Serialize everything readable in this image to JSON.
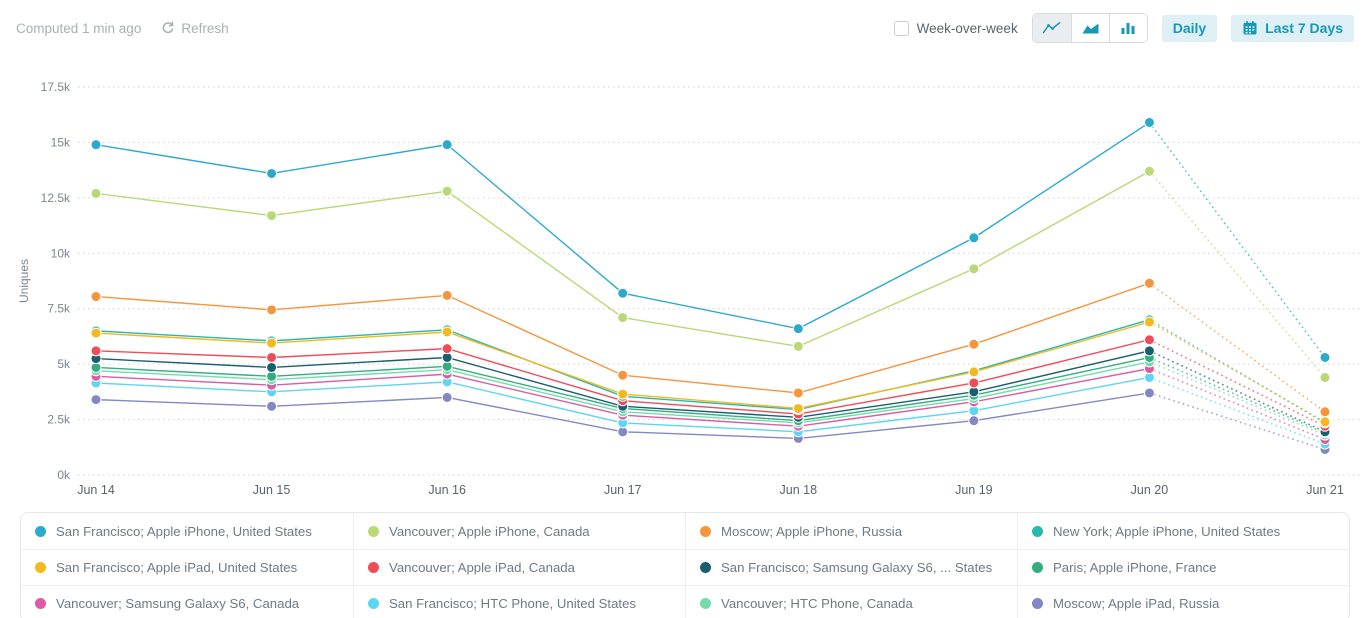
{
  "header": {
    "computed_label": "Computed 1 min ago",
    "refresh_label": "Refresh",
    "week_over_week_label": "Week-over-week",
    "week_over_week_checked": false,
    "daily_label": "Daily",
    "range_label": "Last 7 Days",
    "chart_type_selected": "line"
  },
  "icons": {
    "refresh": "circular-arrow",
    "line_chart": "zigzag-line",
    "area_chart": "filled-mountain",
    "bar_chart": "three-bars",
    "calendar": "calendar-grid"
  },
  "colors": {
    "accent_teal": "#1699b6",
    "pill_bg": "#deeff5",
    "grid_line": "#cdd2d7",
    "axis_text": "#7b858f",
    "x_label_text": "#59636d"
  },
  "chart_data": {
    "type": "line",
    "title": "",
    "xlabel": "",
    "ylabel": "Uniques",
    "x_labels": [
      "Jun 14",
      "Jun 15",
      "Jun 16",
      "Jun 17",
      "Jun 18",
      "Jun 19",
      "Jun 20",
      "Jun 21"
    ],
    "y_ticks": [
      "17.5k",
      "15k",
      "12.5k",
      "10k",
      "7.5k",
      "5k",
      "2.5k",
      "0k"
    ],
    "ylim": [
      0,
      17500
    ],
    "grid": "horizontal-dotted",
    "legend_position": "bottom",
    "note": "segment between Jun 20 and Jun 21 is drawn dotted (incomplete period)",
    "series": [
      {
        "name": "San Francisco; Apple iPhone, United States",
        "color": "#2caacd",
        "values": [
          14900,
          13600,
          14900,
          8200,
          6600,
          10700,
          15900,
          5300
        ]
      },
      {
        "name": "Vancouver; Apple iPhone, Canada",
        "color": "#b9d976",
        "values": [
          12700,
          11700,
          12800,
          7100,
          5800,
          9300,
          13700,
          4400
        ]
      },
      {
        "name": "Moscow; Apple iPhone, Russia",
        "color": "#f6953c",
        "values": [
          8050,
          7450,
          8100,
          4500,
          3700,
          5900,
          8650,
          2850
        ]
      },
      {
        "name": "New York; Apple iPhone, United States",
        "color": "#28b8ac",
        "values": [
          6500,
          6050,
          6550,
          3550,
          2950,
          4700,
          7000,
          2350
        ]
      },
      {
        "name": "San Francisco; Apple iPad, United States",
        "color": "#f4b820",
        "values": [
          6400,
          5950,
          6450,
          3650,
          3000,
          4650,
          6900,
          2400
        ]
      },
      {
        "name": "Vancouver; Apple iPad, Canada",
        "color": "#ef4c58",
        "values": [
          5600,
          5300,
          5700,
          3350,
          2750,
          4150,
          6100,
          2200
        ]
      },
      {
        "name": "San Francisco; Samsung Galaxy S6, ...  States",
        "color": "#1a5f6e",
        "values": [
          5250,
          4850,
          5300,
          3100,
          2600,
          3750,
          5600,
          1950
        ]
      },
      {
        "name": "Paris; Apple iPhone, France",
        "color": "#33ad7e",
        "values": [
          4850,
          4450,
          4900,
          3000,
          2450,
          3600,
          5300,
          1900
        ]
      },
      {
        "name": "Vancouver; Samsung Galaxy S6, Canada",
        "color": "#dd5ba2",
        "values": [
          4450,
          4050,
          4550,
          2700,
          2200,
          3300,
          4800,
          1600
        ]
      },
      {
        "name": "San Francisco; HTC Phone, United States",
        "color": "#5cd6f2",
        "values": [
          4150,
          3750,
          4200,
          2350,
          1950,
          2900,
          4400,
          1400
        ]
      },
      {
        "name": "Vancouver; HTC Phone, Canada",
        "color": "#74dcab",
        "values": [
          4700,
          4300,
          4750,
          2850,
          2350,
          3450,
          5100,
          1800
        ]
      },
      {
        "name": "Moscow; Apple iPad, Russia",
        "color": "#8388c4",
        "values": [
          3400,
          3100,
          3500,
          1950,
          1650,
          2450,
          3700,
          1150
        ]
      }
    ]
  },
  "legend": {
    "items": [
      {
        "label": "San Francisco; Apple iPhone, United States",
        "color": "#2caacd"
      },
      {
        "label": "Vancouver; Apple iPhone, Canada",
        "color": "#b9d976"
      },
      {
        "label": "Moscow; Apple iPhone, Russia",
        "color": "#f6953c"
      },
      {
        "label": "New York; Apple iPhone, United States",
        "color": "#28b8ac"
      },
      {
        "label": "San Francisco; Apple iPad, United States",
        "color": "#f4b820"
      },
      {
        "label": "Vancouver; Apple iPad, Canada",
        "color": "#ef4c58"
      },
      {
        "label": "San Francisco; Samsung Galaxy S6, ...  States",
        "color": "#1a5f6e"
      },
      {
        "label": "Paris; Apple iPhone, France",
        "color": "#33ad7e"
      },
      {
        "label": "Vancouver; Samsung Galaxy S6, Canada",
        "color": "#dd5ba2"
      },
      {
        "label": "San Francisco; HTC Phone, United States",
        "color": "#5cd6f2"
      },
      {
        "label": "Vancouver; HTC Phone, Canada",
        "color": "#74dcab"
      },
      {
        "label": "Moscow; Apple iPad, Russia",
        "color": "#8388c4"
      }
    ]
  }
}
